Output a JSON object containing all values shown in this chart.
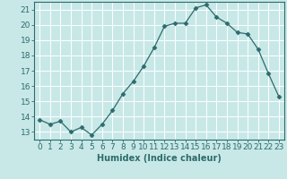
{
  "x": [
    0,
    1,
    2,
    3,
    4,
    5,
    6,
    7,
    8,
    9,
    10,
    11,
    12,
    13,
    14,
    15,
    16,
    17,
    18,
    19,
    20,
    21,
    22,
    23
  ],
  "y": [
    13.8,
    13.5,
    13.7,
    13.0,
    13.3,
    12.8,
    13.5,
    14.4,
    15.5,
    16.3,
    17.3,
    18.5,
    19.9,
    20.1,
    20.1,
    21.1,
    21.3,
    20.5,
    20.1,
    19.5,
    19.4,
    18.4,
    16.8,
    15.3
  ],
  "xlabel": "Humidex (Indice chaleur)",
  "xlim": [
    -0.5,
    23.5
  ],
  "ylim": [
    12.5,
    21.5
  ],
  "yticks": [
    13,
    14,
    15,
    16,
    17,
    18,
    19,
    20,
    21
  ],
  "xticks": [
    0,
    1,
    2,
    3,
    4,
    5,
    6,
    7,
    8,
    9,
    10,
    11,
    12,
    13,
    14,
    15,
    16,
    17,
    18,
    19,
    20,
    21,
    22,
    23
  ],
  "line_color": "#2d6b6b",
  "marker": "D",
  "marker_size": 2.5,
  "bg_color": "#c8e8e8",
  "grid_color": "#ffffff",
  "border_color": "#2d6b6b",
  "label_fontsize": 7,
  "tick_fontsize": 6.5
}
